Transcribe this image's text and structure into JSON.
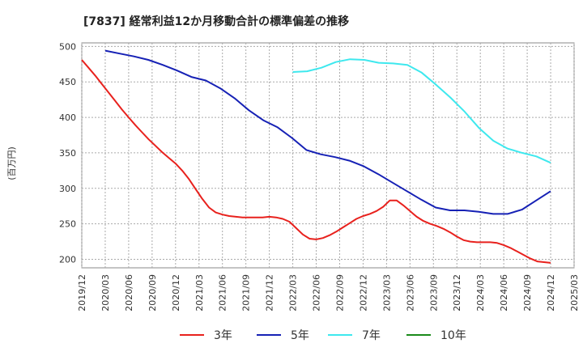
{
  "chart_data": {
    "type": "line",
    "title": "[7837]  経常利益12か月移動合計の標準偏差の推移",
    "ylabel": "(百万円)",
    "xlabel": "",
    "ylim": [
      188,
      505
    ],
    "yticks": [
      200,
      250,
      300,
      350,
      400,
      450,
      500
    ],
    "x_ticks": [
      "2019/12",
      "2020/03",
      "2020/06",
      "2020/09",
      "2020/12",
      "2021/03",
      "2021/06",
      "2021/09",
      "2021/12",
      "2022/03",
      "2022/06",
      "2022/09",
      "2022/12",
      "2023/03",
      "2023/06",
      "2023/09",
      "2023/12",
      "2024/03",
      "2024/06",
      "2024/09",
      "2024/12",
      "2025/03"
    ],
    "grid": true,
    "legend_position": "bottom",
    "series": [
      {
        "name": "3年",
        "color": "#e8211d",
        "points": [
          [
            "2019/12",
            481
          ],
          [
            "2020/01",
            470
          ],
          [
            "2020/02",
            459
          ],
          [
            "2020/03",
            447
          ],
          [
            "2020/04",
            435
          ],
          [
            "2020/05",
            423
          ],
          [
            "2020/06",
            411
          ],
          [
            "2020/07",
            400
          ],
          [
            "2020/08",
            389
          ],
          [
            "2020/09",
            379
          ],
          [
            "2020/10",
            369
          ],
          [
            "2020/11",
            360
          ],
          [
            "2020/12",
            351
          ],
          [
            "2021/01",
            343
          ],
          [
            "2021/02",
            335
          ],
          [
            "2021/03",
            325
          ],
          [
            "2021/04",
            313
          ],
          [
            "2021/05",
            299
          ],
          [
            "2021/06",
            285
          ],
          [
            "2021/07",
            273
          ],
          [
            "2021/08",
            266
          ],
          [
            "2021/09",
            263
          ],
          [
            "2021/10",
            261
          ],
          [
            "2021/11",
            260
          ],
          [
            "2021/12",
            259
          ],
          [
            "2022/01",
            259
          ],
          [
            "2022/02",
            259
          ],
          [
            "2022/03",
            259
          ],
          [
            "2022/04",
            260
          ],
          [
            "2022/05",
            259
          ],
          [
            "2022/06",
            257
          ],
          [
            "2022/07",
            253
          ],
          [
            "2022/08",
            244
          ],
          [
            "2022/09",
            235
          ],
          [
            "2022/10",
            229
          ],
          [
            "2022/11",
            228
          ],
          [
            "2022/12",
            230
          ],
          [
            "2023/01",
            234
          ],
          [
            "2023/02",
            239
          ],
          [
            "2023/03",
            245
          ],
          [
            "2023/04",
            251
          ],
          [
            "2023/05",
            257
          ],
          [
            "2023/06",
            261
          ],
          [
            "2023/07",
            264
          ],
          [
            "2023/08",
            268
          ],
          [
            "2023/09",
            274
          ],
          [
            "2023/10",
            283
          ],
          [
            "2023/11",
            283
          ],
          [
            "2023/12",
            276
          ],
          [
            "2024/01",
            268
          ],
          [
            "2024/02",
            260
          ],
          [
            "2024/03",
            254
          ],
          [
            "2024/04",
            250
          ],
          [
            "2024/05",
            247
          ],
          [
            "2024/06",
            243
          ],
          [
            "2024/07",
            238
          ],
          [
            "2024/08",
            232
          ],
          [
            "2024/09",
            227
          ],
          [
            "2024/10",
            225
          ],
          [
            "2024/11",
            224
          ],
          [
            "2024/12",
            224
          ],
          [
            "2025/01",
            224
          ],
          [
            "2025/02",
            223
          ],
          [
            "2025/03",
            220
          ],
          [
            "2025/04",
            216
          ],
          [
            "2025/05",
            211
          ],
          [
            "2025/06",
            206
          ],
          [
            "2025/07",
            201
          ],
          [
            "2025/08",
            197
          ],
          [
            "2025/09",
            196
          ],
          [
            "2025/10",
            195
          ]
        ]
      },
      {
        "name": "5年",
        "color": "#1621b5",
        "points": [
          [
            "2020/03",
            494
          ],
          [
            "2020/06",
            490
          ],
          [
            "2020/09",
            486
          ],
          [
            "2020/12",
            481
          ],
          [
            "2021/03",
            474
          ],
          [
            "2021/06",
            466
          ],
          [
            "2021/09",
            457
          ],
          [
            "2021/12",
            452
          ],
          [
            "2022/03",
            441
          ],
          [
            "2022/06",
            427
          ],
          [
            "2022/09",
            410
          ],
          [
            "2022/12",
            396
          ],
          [
            "2023/03",
            386
          ],
          [
            "2023/06",
            371
          ],
          [
            "2023/09",
            354
          ],
          [
            "2023/12",
            348
          ],
          [
            "2024/03",
            344
          ],
          [
            "2024/06",
            339
          ],
          [
            "2024/09",
            331
          ],
          [
            "2024/12",
            320
          ],
          [
            "2025/03",
            308
          ],
          [
            "2025/06",
            296
          ],
          [
            "2025/09",
            284
          ],
          [
            "2025/12",
            273
          ],
          [
            "2026/03",
            269
          ],
          [
            "2026/06",
            269
          ],
          [
            "2026/09",
            267
          ],
          [
            "2026/12",
            264
          ],
          [
            "2027/03",
            264
          ],
          [
            "2027/06",
            270
          ],
          [
            "2027/09",
            283
          ],
          [
            "2027/12",
            296
          ]
        ]
      },
      {
        "name": "7年",
        "color": "#3ee8ee",
        "points": [
          [
            "2022/03",
            464
          ],
          [
            "2022/06",
            465
          ],
          [
            "2022/09",
            470
          ],
          [
            "2022/12",
            478
          ],
          [
            "2023/03",
            482
          ],
          [
            "2023/06",
            481
          ],
          [
            "2023/09",
            477
          ],
          [
            "2023/12",
            476
          ],
          [
            "2024/03",
            474
          ],
          [
            "2024/06",
            463
          ],
          [
            "2024/09",
            446
          ],
          [
            "2024/12",
            428
          ],
          [
            "2025/03",
            408
          ],
          [
            "2025/06",
            385
          ],
          [
            "2025/09",
            367
          ],
          [
            "2025/12",
            356
          ],
          [
            "2026/03",
            350
          ],
          [
            "2026/06",
            345
          ],
          [
            "2026/09",
            336
          ]
        ]
      },
      {
        "name": "10年",
        "color": "#1a8a1a",
        "points": []
      }
    ]
  }
}
